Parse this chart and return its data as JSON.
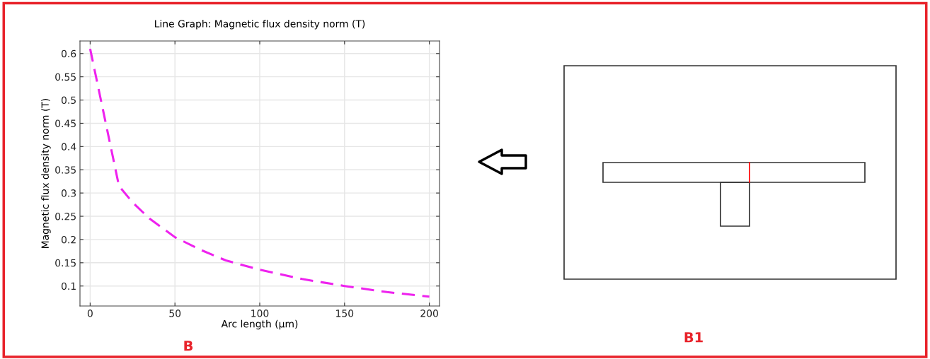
{
  "chart_data": {
    "type": "line",
    "title": "Line Graph: Magnetic flux density norm (T)",
    "xlabel": "Arc length (µm)",
    "ylabel": "Magnetic flux density norm (T)",
    "x": [
      0,
      17,
      25,
      35,
      50,
      65,
      80,
      100,
      125,
      150,
      175,
      200
    ],
    "series": [
      {
        "color": "#ee22ee",
        "values": [
          0.61,
          0.315,
          0.28,
          0.245,
          0.205,
          0.178,
          0.155,
          0.135,
          0.115,
          0.1,
          0.087,
          0.077
        ]
      }
    ],
    "xlim": [
      -6,
      206
    ],
    "xticks": [
      0,
      50,
      100,
      150,
      200
    ],
    "ylim": [
      0.057,
      0.627
    ],
    "yticks": [
      0.1,
      0.15,
      0.2,
      0.25,
      0.3,
      0.35,
      0.4,
      0.45,
      0.5,
      0.55,
      0.6
    ],
    "grid": true,
    "line_style": "dashed",
    "marker": "none",
    "annotations": [
      "B",
      "B1"
    ]
  }
}
